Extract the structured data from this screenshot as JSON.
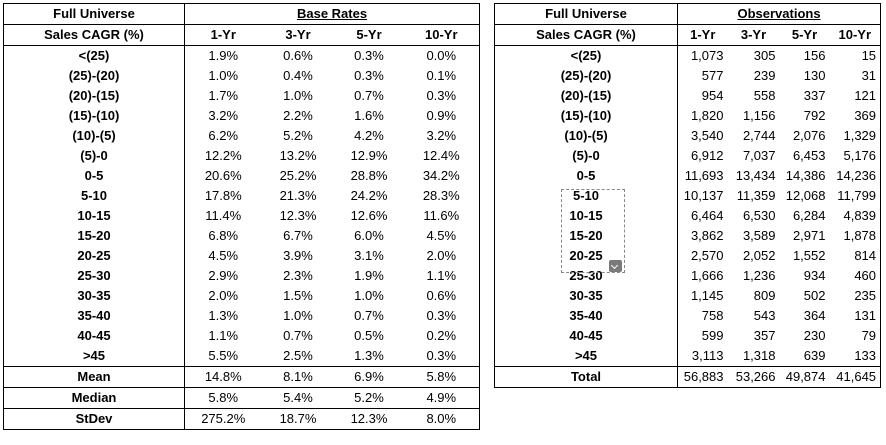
{
  "left": {
    "header": {
      "col0": "Full Universe",
      "title": "Base Rates"
    },
    "subheader": {
      "col0": "Sales CAGR (%)",
      "cols": [
        "1-Yr",
        "3-Yr",
        "5-Yr",
        "10-Yr"
      ]
    },
    "rows": [
      {
        "label": "<(25)",
        "v": [
          "1.9%",
          "0.6%",
          "0.3%",
          "0.0%"
        ]
      },
      {
        "label": "(25)-(20)",
        "v": [
          "1.0%",
          "0.4%",
          "0.3%",
          "0.1%"
        ]
      },
      {
        "label": "(20)-(15)",
        "v": [
          "1.7%",
          "1.0%",
          "0.7%",
          "0.3%"
        ]
      },
      {
        "label": "(15)-(10)",
        "v": [
          "3.2%",
          "2.2%",
          "1.6%",
          "0.9%"
        ]
      },
      {
        "label": "(10)-(5)",
        "v": [
          "6.2%",
          "5.2%",
          "4.2%",
          "3.2%"
        ]
      },
      {
        "label": "(5)-0",
        "v": [
          "12.2%",
          "13.2%",
          "12.9%",
          "12.4%"
        ]
      },
      {
        "label": "0-5",
        "v": [
          "20.6%",
          "25.2%",
          "28.8%",
          "34.2%"
        ]
      },
      {
        "label": "5-10",
        "v": [
          "17.8%",
          "21.3%",
          "24.2%",
          "28.3%"
        ]
      },
      {
        "label": "10-15",
        "v": [
          "11.4%",
          "12.3%",
          "12.6%",
          "11.6%"
        ]
      },
      {
        "label": "15-20",
        "v": [
          "6.8%",
          "6.7%",
          "6.0%",
          "4.5%"
        ]
      },
      {
        "label": "20-25",
        "v": [
          "4.5%",
          "3.9%",
          "3.1%",
          "2.0%"
        ]
      },
      {
        "label": "25-30",
        "v": [
          "2.9%",
          "2.3%",
          "1.9%",
          "1.1%"
        ]
      },
      {
        "label": "30-35",
        "v": [
          "2.0%",
          "1.5%",
          "1.0%",
          "0.6%"
        ]
      },
      {
        "label": "35-40",
        "v": [
          "1.3%",
          "1.0%",
          "0.7%",
          "0.3%"
        ]
      },
      {
        "label": "40-45",
        "v": [
          "1.1%",
          "0.7%",
          "0.5%",
          "0.2%"
        ]
      },
      {
        "label": ">45",
        "v": [
          "5.5%",
          "2.5%",
          "1.3%",
          "0.3%"
        ]
      }
    ],
    "stats": [
      {
        "label": "Mean",
        "v": [
          "14.8%",
          "8.1%",
          "6.9%",
          "5.8%"
        ]
      },
      {
        "label": "Median",
        "v": [
          "5.8%",
          "5.4%",
          "5.2%",
          "4.9%"
        ]
      },
      {
        "label": "StDev",
        "v": [
          "275.2%",
          "18.7%",
          "12.3%",
          "8.0%"
        ]
      }
    ]
  },
  "right": {
    "header": {
      "col0": "Full Universe",
      "title": "Observations"
    },
    "subheader": {
      "col0": "Sales CAGR (%)",
      "cols": [
        "1-Yr",
        "3-Yr",
        "5-Yr",
        "10-Yr"
      ]
    },
    "rows": [
      {
        "label": "<(25)",
        "v": [
          "1,073",
          "305",
          "156",
          "15"
        ]
      },
      {
        "label": "(25)-(20)",
        "v": [
          "577",
          "239",
          "130",
          "31"
        ]
      },
      {
        "label": "(20)-(15)",
        "v": [
          "954",
          "558",
          "337",
          "121"
        ]
      },
      {
        "label": "(15)-(10)",
        "v": [
          "1,820",
          "1,156",
          "792",
          "369"
        ]
      },
      {
        "label": "(10)-(5)",
        "v": [
          "3,540",
          "2,744",
          "2,076",
          "1,329"
        ]
      },
      {
        "label": "(5)-0",
        "v": [
          "6,912",
          "7,037",
          "6,453",
          "5,176"
        ]
      },
      {
        "label": "0-5",
        "v": [
          "11,693",
          "13,434",
          "14,386",
          "14,236"
        ]
      },
      {
        "label": "5-10",
        "v": [
          "10,137",
          "11,359",
          "12,068",
          "11,799"
        ]
      },
      {
        "label": "10-15",
        "v": [
          "6,464",
          "6,530",
          "6,284",
          "4,839"
        ]
      },
      {
        "label": "15-20",
        "v": [
          "3,862",
          "3,589",
          "2,971",
          "1,878"
        ]
      },
      {
        "label": "20-25",
        "v": [
          "2,570",
          "2,052",
          "1,552",
          "814"
        ]
      },
      {
        "label": "25-30",
        "v": [
          "1,666",
          "1,236",
          "934",
          "460"
        ]
      },
      {
        "label": "30-35",
        "v": [
          "1,145",
          "809",
          "502",
          "235"
        ]
      },
      {
        "label": "35-40",
        "v": [
          "758",
          "543",
          "364",
          "131"
        ]
      },
      {
        "label": "40-45",
        "v": [
          "599",
          "357",
          "230",
          "79"
        ]
      },
      {
        "label": ">45",
        "v": [
          "3,113",
          "1,318",
          "639",
          "133"
        ]
      }
    ],
    "total": {
      "label": "Total",
      "v": [
        "56,883",
        "53,266",
        "49,874",
        "41,645"
      ]
    }
  }
}
